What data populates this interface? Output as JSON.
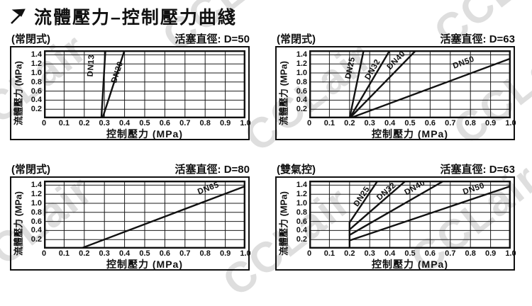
{
  "page": {
    "title": "流體壓力–控制壓力曲綫",
    "title_icon": "arrow-up-right-icon",
    "watermark": "CCLair"
  },
  "chart_data": [
    {
      "type": "line",
      "mode_label": "(常閉式)",
      "title": "活塞直徑: D=50",
      "xlabel": "控制壓力 (MPa)",
      "ylabel": "流體壓力 (MPa)",
      "xlim": [
        0,
        1.0
      ],
      "ylim": [
        0,
        1.5
      ],
      "grid": true,
      "xticks": [
        "0",
        "0.1",
        "0.2",
        "0.3",
        "0.4",
        "0.5",
        "0.6",
        "0.7",
        "0.8",
        "0.9",
        "1.0"
      ],
      "yticks": [
        "0.2",
        "0.4",
        "0.6",
        "0.8",
        "1.0",
        "1.2",
        "1.4"
      ],
      "series": [
        {
          "name": "DN13",
          "points": [
            [
              0.285,
              0
            ],
            [
              0.305,
              1.5
            ]
          ],
          "label_at": [
            0.245,
            1.16
          ]
        },
        {
          "name": "DN20",
          "points": [
            [
              0.29,
              0
            ],
            [
              0.4,
              1.5
            ]
          ],
          "label_at": [
            0.375,
            1.0
          ]
        }
      ]
    },
    {
      "type": "line",
      "mode_label": "(常閉式)",
      "title": "活塞直徑: D=63",
      "xlabel": "控制壓力 (MPa)",
      "ylabel": "流體壓力 (MPa)",
      "xlim": [
        0,
        1.0
      ],
      "ylim": [
        0,
        1.5
      ],
      "grid": true,
      "xticks": [
        "0",
        "0.1",
        "0.2",
        "0.3",
        "0.4",
        "0.5",
        "0.6",
        "0.7",
        "0.8",
        "0.9",
        "1.0"
      ],
      "yticks": [
        "0.2",
        "0.4",
        "0.6",
        "0.8",
        "1.0",
        "1.2",
        "1.4"
      ],
      "series": [
        {
          "name": "DN25",
          "points": [
            [
              0.2,
              0
            ],
            [
              0.27,
              1.5
            ]
          ],
          "label_at": [
            0.215,
            1.1
          ]
        },
        {
          "name": "DN32",
          "points": [
            [
              0.2,
              0
            ],
            [
              0.4,
              1.5
            ]
          ],
          "label_at": [
            0.325,
            1.05
          ]
        },
        {
          "name": "DN40",
          "points": [
            [
              0.2,
              0
            ],
            [
              0.53,
              1.5
            ]
          ],
          "label_at": [
            0.44,
            1.24
          ]
        },
        {
          "name": "DN50",
          "points": [
            [
              0.2,
              0
            ],
            [
              1.0,
              1.32
            ]
          ],
          "label_at": [
            0.77,
            1.18
          ]
        }
      ]
    },
    {
      "type": "line",
      "mode_label": "(常閉式)",
      "title": "活塞直徑: D=80",
      "xlabel": "控制壓力 (MPa)",
      "ylabel": "流體壓力 (MPa)",
      "xlim": [
        0,
        1.0
      ],
      "ylim": [
        0,
        1.5
      ],
      "grid": true,
      "xticks": [
        "0",
        "0.1",
        "0.2",
        "0.3",
        "0.4",
        "0.5",
        "0.6",
        "0.7",
        "0.8",
        "0.9",
        "1.0"
      ],
      "yticks": [
        "0.2",
        "0.4",
        "0.6",
        "0.8",
        "1.0",
        "1.2",
        "1.4"
      ],
      "series": [
        {
          "name": "DN65",
          "points": [
            [
              0.18,
              0
            ],
            [
              1.0,
              1.38
            ]
          ],
          "label_at": [
            0.82,
            1.28
          ]
        }
      ]
    },
    {
      "type": "line",
      "mode_label": "(雙氣控)",
      "title": "活塞直徑: D=63",
      "xlabel": "控制壓力 (MPa)",
      "ylabel": "流體壓力 (MPa)",
      "xlim": [
        0,
        1.0
      ],
      "ylim": [
        0,
        1.5
      ],
      "grid": true,
      "xticks": [
        "0",
        "0.1",
        "0.2",
        "0.3",
        "0.4",
        "0.5",
        "0.6",
        "0.7",
        "0.8",
        "0.9",
        "1.0"
      ],
      "yticks": [
        "0.2",
        "0.4",
        "0.6",
        "0.8",
        "1.0",
        "1.2",
        "1.4"
      ],
      "series": [
        {
          "name": "",
          "points": [
            [
              0.2,
              0
            ],
            [
              0.2,
              0.575
            ]
          ]
        },
        {
          "name": "DN25",
          "points": [
            [
              0.2,
              0.575
            ],
            [
              0.34,
              1.5
            ]
          ],
          "label_at": [
            0.27,
            1.12
          ]
        },
        {
          "name": "DN32",
          "points": [
            [
              0.2,
              0.42
            ],
            [
              0.48,
              1.5
            ]
          ],
          "label_at": [
            0.39,
            1.22
          ]
        },
        {
          "name": "DN40",
          "points": [
            [
              0.2,
              0.3
            ],
            [
              0.67,
              1.5
            ]
          ],
          "label_at": [
            0.53,
            1.3
          ]
        },
        {
          "name": "DN50",
          "points": [
            [
              0.2,
              0.18
            ],
            [
              1.0,
              1.38
            ]
          ],
          "label_at": [
            0.82,
            1.27
          ]
        }
      ]
    }
  ]
}
